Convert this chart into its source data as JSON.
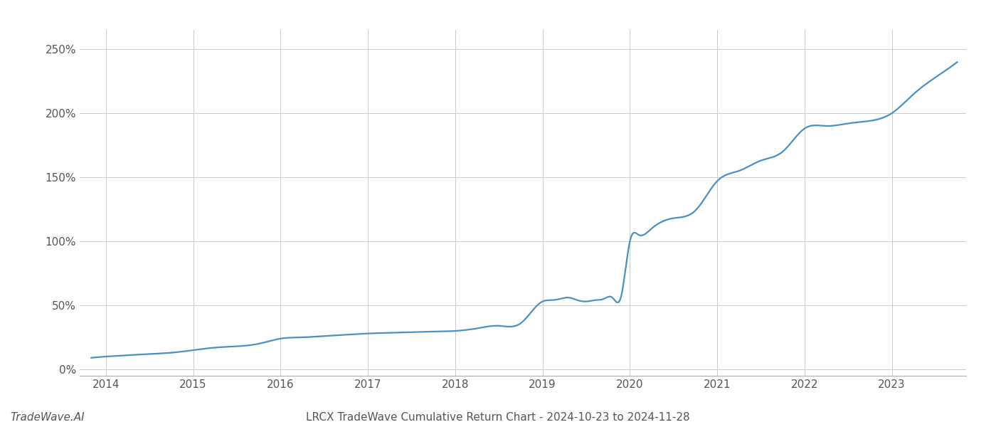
{
  "title": "LRCX TradeWave Cumulative Return Chart - 2024-10-23 to 2024-11-28",
  "watermark": "TradeWave.AI",
  "line_color": "#4a90c4",
  "line_width": 1.6,
  "background_color": "#ffffff",
  "grid_color": "#cccccc",
  "x_years": [
    2013.83,
    2014.0,
    2014.25,
    2014.5,
    2014.75,
    2015.0,
    2015.25,
    2015.5,
    2015.75,
    2016.0,
    2016.25,
    2016.5,
    2016.75,
    2017.0,
    2017.25,
    2017.5,
    2017.75,
    2018.0,
    2018.25,
    2018.5,
    2018.75,
    2019.0,
    2019.1,
    2019.2,
    2019.3,
    2019.4,
    2019.5,
    2019.6,
    2019.7,
    2019.8,
    2019.9,
    2020.0,
    2020.1,
    2020.25,
    2020.5,
    2020.75,
    2021.0,
    2021.25,
    2021.5,
    2021.75,
    2022.0,
    2022.25,
    2022.5,
    2022.75,
    2023.0,
    2023.25,
    2023.5,
    2023.75
  ],
  "y_values": [
    9,
    10,
    11,
    12,
    13,
    15,
    17,
    18,
    20,
    24,
    25,
    26,
    27,
    28,
    28.5,
    29,
    29.5,
    30,
    32,
    34,
    36,
    53,
    54,
    55,
    56,
    54,
    53,
    54,
    55,
    56,
    57,
    100,
    105,
    110,
    118,
    124,
    147,
    155,
    163,
    170,
    188,
    190,
    192,
    194,
    200,
    215,
    228,
    240
  ],
  "xlim": [
    2013.7,
    2023.85
  ],
  "ylim": [
    -5,
    265
  ],
  "yticks": [
    0,
    50,
    100,
    150,
    200,
    250
  ],
  "xticks": [
    2014,
    2015,
    2016,
    2017,
    2018,
    2019,
    2020,
    2021,
    2022,
    2023
  ],
  "title_fontsize": 11,
  "watermark_fontsize": 11,
  "tick_fontsize": 11
}
